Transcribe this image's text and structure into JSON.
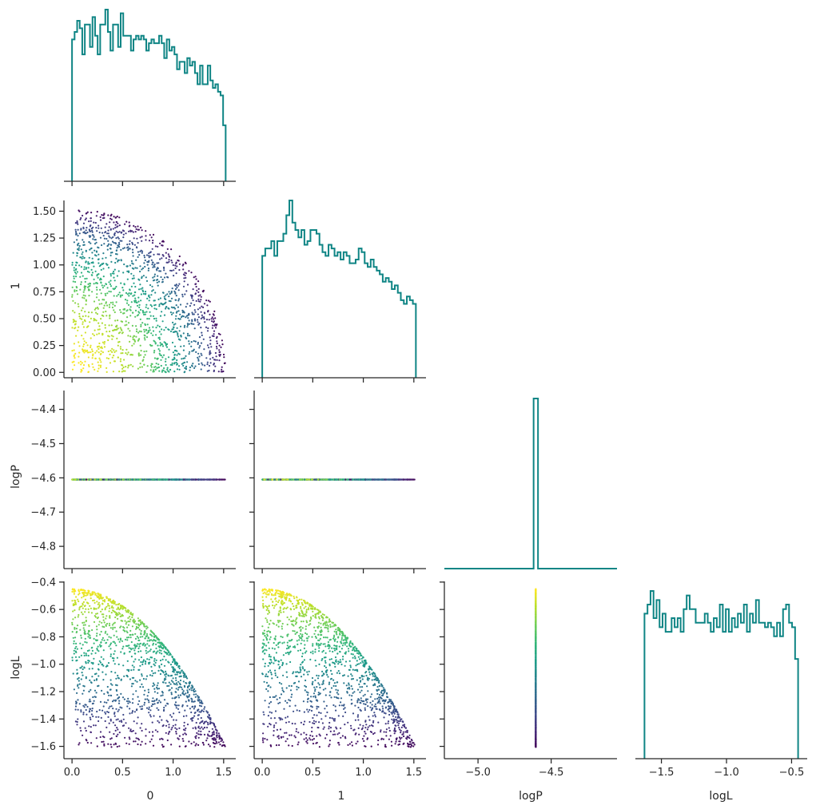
{
  "chart_data": [
    {
      "type": "histogram",
      "panel": "0-0",
      "variable": "0",
      "xlim": [
        -0.08,
        1.62
      ],
      "x_ticks": [
        0.0,
        0.5,
        1.0,
        1.5
      ],
      "bin_range": [
        0.0,
        1.52
      ],
      "color": "#0f8585",
      "counts": [
        38,
        40,
        43,
        41,
        34,
        42,
        42,
        36,
        44,
        39,
        34,
        42,
        42,
        46,
        40,
        35,
        42,
        42,
        36,
        45,
        39,
        39,
        39,
        35,
        38,
        39,
        38,
        39,
        38,
        35,
        37,
        38,
        37,
        37,
        39,
        37,
        33,
        38,
        35,
        36,
        34,
        30,
        32,
        32,
        29,
        33,
        31,
        32,
        29,
        26,
        31,
        26,
        26,
        31,
        27,
        25,
        26,
        24,
        23,
        15
      ]
    },
    {
      "type": "scatter",
      "panel": "1-0",
      "x_variable": "0",
      "y_variable": "1",
      "description": "points fill quarter disc x^2+y^2<=1.52^2, colored by logL (viridis)",
      "xlim": [
        -0.08,
        1.62
      ],
      "ylim": [
        -0.05,
        1.6
      ],
      "x_ticks": [
        0.0,
        0.5,
        1.0,
        1.5
      ],
      "y_ticks": [
        0.0,
        0.25,
        0.5,
        0.75,
        1.0,
        1.25,
        1.5
      ],
      "y_tick_labels": [
        "0.00",
        "0.25",
        "0.50",
        "0.75",
        "1.00",
        "1.25",
        "1.50"
      ],
      "radius": 1.52,
      "n_points": 1500,
      "colormap": [
        "#440154",
        "#3b528b",
        "#21918c",
        "#5ec962",
        "#fde725"
      ]
    },
    {
      "type": "histogram",
      "panel": "1-1",
      "variable": "1",
      "xlim": [
        -0.08,
        1.62
      ],
      "x_ticks": [
        0.0,
        0.5,
        1.0,
        1.5
      ],
      "bin_range": [
        0.0,
        1.52
      ],
      "color": "#0f8585",
      "counts": [
        33,
        35,
        35,
        37,
        33,
        37,
        37,
        39,
        44,
        48,
        42,
        40,
        38,
        40,
        36,
        37,
        40,
        40,
        39,
        36,
        34,
        33,
        36,
        35,
        33,
        34,
        32,
        34,
        33,
        31,
        31,
        32,
        35,
        34,
        31,
        30,
        32,
        30,
        29,
        28,
        26,
        27,
        26,
        24,
        25,
        23,
        21,
        20,
        22,
        21,
        20
      ]
    },
    {
      "type": "scatter",
      "panel": "2-0",
      "x_variable": "0",
      "y_variable": "logP",
      "description": "all points on logP = -4.605, colored by logL",
      "xlim": [
        -0.08,
        1.62
      ],
      "ylim": [
        -4.865,
        -4.345
      ],
      "x_ticks": [
        0.0,
        0.5,
        1.0,
        1.5
      ],
      "y_ticks": [
        -4.8,
        -4.7,
        -4.6,
        -4.5,
        -4.4
      ],
      "y_tick_labels": [
        "−4.8",
        "−4.7",
        "−4.6",
        "−4.5",
        "−4.4"
      ],
      "logP_value": -4.605,
      "x_range": [
        0.0,
        1.52
      ]
    },
    {
      "type": "scatter",
      "panel": "2-1",
      "x_variable": "1",
      "y_variable": "logP",
      "xlim": [
        -0.08,
        1.62
      ],
      "ylim": [
        -4.865,
        -4.345
      ],
      "x_ticks": [
        0.0,
        0.5,
        1.0,
        1.5
      ],
      "logP_value": -4.605,
      "x_range": [
        0.0,
        1.52
      ]
    },
    {
      "type": "histogram",
      "panel": "2-2",
      "variable": "logP",
      "xlim": [
        -5.23,
        -4.05
      ],
      "x_ticks": [
        -5.0,
        -4.5
      ],
      "bin_range": [
        -4.62,
        -4.59
      ],
      "color": "#0f8585",
      "counts": [
        100
      ]
    },
    {
      "type": "scatter",
      "panel": "3-0",
      "x_variable": "0",
      "y_variable": "logL",
      "description": "logL = -0.45 - 0.5*(x^2+y^2), colored by logL",
      "xlim": [
        -0.08,
        1.62
      ],
      "ylim": [
        -1.69,
        -0.395
      ],
      "x_ticks": [
        0.0,
        0.5,
        1.0,
        1.5
      ],
      "x_tick_labels": [
        "0.0",
        "0.5",
        "1.0",
        "1.5"
      ],
      "y_ticks": [
        -0.4,
        -0.6,
        -0.8,
        -1.0,
        -1.2,
        -1.4,
        -1.6
      ],
      "y_tick_labels": [
        "−0.4",
        "−0.6",
        "−0.8",
        "−1.0",
        "−1.2",
        "−1.4",
        "−1.6"
      ],
      "logL_range": [
        -1.63,
        -0.45
      ]
    },
    {
      "type": "scatter",
      "panel": "3-1",
      "x_variable": "1",
      "y_variable": "logL",
      "xlim": [
        -0.08,
        1.62
      ],
      "ylim": [
        -1.69,
        -0.395
      ],
      "x_ticks": [
        0.0,
        0.5,
        1.0,
        1.5
      ],
      "x_tick_labels": [
        "0.0",
        "0.5",
        "1.0",
        "1.5"
      ]
    },
    {
      "type": "scatter",
      "panel": "3-2",
      "x_variable": "logP",
      "y_variable": "logL",
      "xlim": [
        -5.23,
        -4.05
      ],
      "ylim": [
        -1.69,
        -0.395
      ],
      "x_ticks": [
        -5.0,
        -4.5
      ],
      "x_tick_labels": [
        "−5.0",
        "−4.5"
      ],
      "logP_value": -4.605
    },
    {
      "type": "histogram",
      "panel": "3-3",
      "variable": "logL",
      "xlim": [
        -1.7,
        -0.38
      ],
      "x_ticks": [
        -1.5,
        -1.0,
        -0.5
      ],
      "x_tick_labels": [
        "−1.5",
        "−1.0",
        "−0.5"
      ],
      "bin_range": [
        -1.63,
        -0.45
      ],
      "color": "#0f8585",
      "counts": [
        32,
        34,
        37,
        31,
        35,
        29,
        32,
        28,
        28,
        31,
        29,
        31,
        28,
        33,
        36,
        33,
        33,
        30,
        30,
        30,
        32,
        30,
        28,
        31,
        29,
        34,
        28,
        33,
        28,
        31,
        29,
        32,
        30,
        34,
        28,
        32,
        30,
        35,
        30,
        30,
        29,
        30,
        29,
        27,
        30,
        27,
        33,
        34,
        30,
        29,
        22
      ]
    }
  ],
  "labels": {
    "x0": "0",
    "x1": "1",
    "x2": "logP",
    "x3": "logL",
    "y1": "1",
    "y2": "logP",
    "y3": "logL"
  }
}
